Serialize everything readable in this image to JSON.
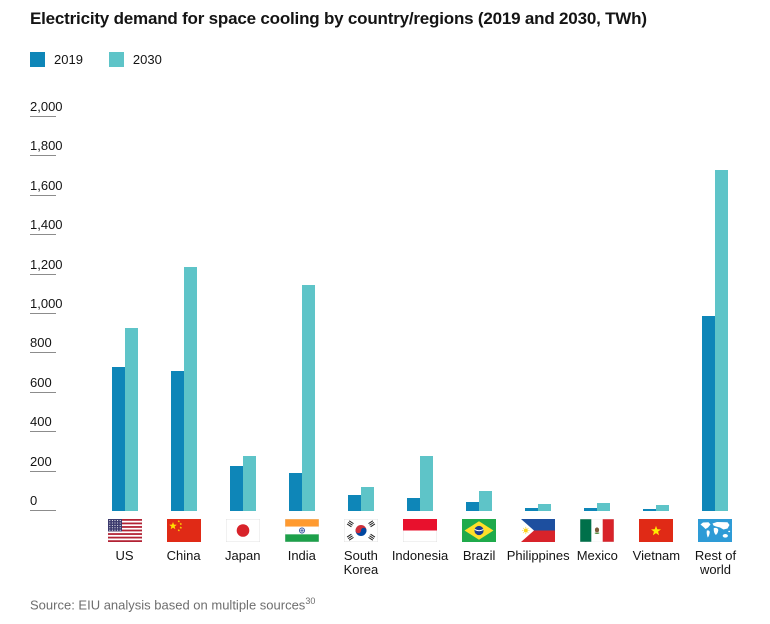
{
  "title": "Electricity demand for space cooling by country/regions (2019 and 2030, TWh)",
  "legend": {
    "items": [
      {
        "label": "2019",
        "color": "#0e86b8"
      },
      {
        "label": "2030",
        "color": "#5ec4c8"
      }
    ]
  },
  "source": {
    "text": "Source: EIU analysis based on multiple sources",
    "superscript": "30"
  },
  "chart_data": {
    "type": "bar",
    "title": "Electricity demand for space cooling by country/regions (2019 and 2030, TWh)",
    "categories": [
      "US",
      "China",
      "Japan",
      "India",
      "South Korea",
      "Indonesia",
      "Brazil",
      "Philippines",
      "Mexico",
      "Vietnam",
      "Rest of world"
    ],
    "label_lines": [
      [
        "US"
      ],
      [
        "China"
      ],
      [
        "Japan"
      ],
      [
        "India"
      ],
      [
        "South",
        "Korea"
      ],
      [
        "Indonesia"
      ],
      [
        "Brazil"
      ],
      [
        "Philippines"
      ],
      [
        "Mexico"
      ],
      [
        "Vietnam"
      ],
      [
        "Rest of",
        "world"
      ]
    ],
    "flags": [
      "us",
      "cn",
      "jp",
      "in",
      "kr",
      "id",
      "br",
      "ph",
      "mx",
      "vn",
      "world"
    ],
    "series": [
      {
        "name": "2019",
        "color": "#0e86b8",
        "values": [
          730,
          710,
          230,
          195,
          80,
          65,
          45,
          15,
          18,
          11,
          990
        ]
      },
      {
        "name": "2030",
        "color": "#5ec4c8",
        "values": [
          930,
          1240,
          280,
          1150,
          120,
          280,
          100,
          38,
          43,
          31,
          1730
        ]
      }
    ],
    "ylabel": "TWh",
    "ylim": [
      0,
      2000
    ],
    "ytick_labels": [
      "2,000",
      "1,800",
      "1,600",
      "1,400",
      "1,200",
      "1,000",
      "800",
      "600",
      "400",
      "200",
      "0"
    ],
    "ytick_values": [
      2000,
      1800,
      1600,
      1400,
      1200,
      1000,
      800,
      600,
      400,
      200,
      0
    ],
    "grid": false,
    "legend_position": "top-left"
  }
}
